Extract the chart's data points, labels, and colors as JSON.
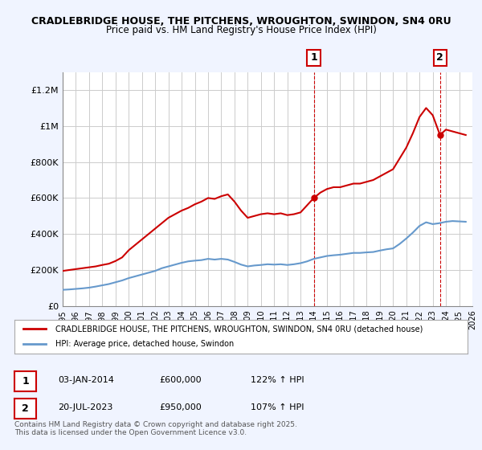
{
  "title": "CRADLEBRIDGE HOUSE, THE PITCHENS, WROUGHTON, SWINDON, SN4 0RU",
  "subtitle": "Price paid vs. HM Land Registry's House Price Index (HPI)",
  "bg_color": "#f0f4ff",
  "plot_bg_color": "#ffffff",
  "grid_color": "#cccccc",
  "red_color": "#cc0000",
  "blue_color": "#6699cc",
  "dashed_color": "#cc0000",
  "ylim": [
    0,
    1300000
  ],
  "yticks": [
    0,
    200000,
    400000,
    600000,
    800000,
    1000000,
    1200000
  ],
  "ytick_labels": [
    "£0",
    "£200K",
    "£400K",
    "£600K",
    "£800K",
    "£1M",
    "£1.2M"
  ],
  "xlim_start": 1995,
  "xlim_end": 2026,
  "xticks": [
    1995,
    1996,
    1997,
    1998,
    1999,
    2000,
    2001,
    2002,
    2003,
    2004,
    2005,
    2006,
    2007,
    2008,
    2009,
    2010,
    2011,
    2012,
    2013,
    2014,
    2015,
    2016,
    2017,
    2018,
    2019,
    2020,
    2021,
    2022,
    2023,
    2024,
    2025,
    2026
  ],
  "marker1_x": 2014.0,
  "marker1_y": 600000,
  "marker1_label": "1",
  "marker2_x": 2023.55,
  "marker2_y": 950000,
  "marker2_label": "2",
  "annotation1": [
    "1",
    "03-JAN-2014",
    "£600,000",
    "122% ↑ HPI"
  ],
  "annotation2": [
    "2",
    "20-JUL-2023",
    "£950,000",
    "107% ↑ HPI"
  ],
  "legend1": "CRADLEBRIDGE HOUSE, THE PITCHENS, WROUGHTON, SWINDON, SN4 0RU (detached house)",
  "legend2": "HPI: Average price, detached house, Swindon",
  "footnote": "Contains HM Land Registry data © Crown copyright and database right 2025.\nThis data is licensed under the Open Government Licence v3.0.",
  "red_x": [
    1995.0,
    1995.5,
    1996.0,
    1996.5,
    1997.0,
    1997.5,
    1998.0,
    1998.5,
    1999.0,
    1999.5,
    2000.0,
    2000.5,
    2001.0,
    2001.5,
    2002.0,
    2002.5,
    2003.0,
    2003.5,
    2004.0,
    2004.5,
    2005.0,
    2005.5,
    2006.0,
    2006.5,
    2007.0,
    2007.5,
    2008.0,
    2008.5,
    2009.0,
    2009.5,
    2010.0,
    2010.5,
    2011.0,
    2011.5,
    2012.0,
    2012.5,
    2013.0,
    2013.5,
    2014.0,
    2014.5,
    2015.0,
    2015.5,
    2016.0,
    2016.5,
    2017.0,
    2017.5,
    2018.0,
    2018.5,
    2019.0,
    2019.5,
    2020.0,
    2020.5,
    2021.0,
    2021.5,
    2022.0,
    2022.5,
    2023.0,
    2023.55,
    2024.0,
    2024.5,
    2025.0,
    2025.5
  ],
  "red_y": [
    195000,
    200000,
    205000,
    210000,
    215000,
    220000,
    228000,
    235000,
    250000,
    270000,
    310000,
    340000,
    370000,
    400000,
    430000,
    460000,
    490000,
    510000,
    530000,
    545000,
    565000,
    580000,
    600000,
    595000,
    610000,
    620000,
    580000,
    530000,
    490000,
    500000,
    510000,
    515000,
    510000,
    515000,
    505000,
    510000,
    520000,
    560000,
    600000,
    630000,
    650000,
    660000,
    660000,
    670000,
    680000,
    680000,
    690000,
    700000,
    720000,
    740000,
    760000,
    820000,
    880000,
    960000,
    1050000,
    1100000,
    1060000,
    950000,
    980000,
    970000,
    960000,
    950000
  ],
  "blue_x": [
    1995.0,
    1995.5,
    1996.0,
    1996.5,
    1997.0,
    1997.5,
    1998.0,
    1998.5,
    1999.0,
    1999.5,
    2000.0,
    2000.5,
    2001.0,
    2001.5,
    2002.0,
    2002.5,
    2003.0,
    2003.5,
    2004.0,
    2004.5,
    2005.0,
    2005.5,
    2006.0,
    2006.5,
    2007.0,
    2007.5,
    2008.0,
    2008.5,
    2009.0,
    2009.5,
    2010.0,
    2010.5,
    2011.0,
    2011.5,
    2012.0,
    2012.5,
    2013.0,
    2013.5,
    2014.0,
    2014.5,
    2015.0,
    2015.5,
    2016.0,
    2016.5,
    2017.0,
    2017.5,
    2018.0,
    2018.5,
    2019.0,
    2019.5,
    2020.0,
    2020.5,
    2021.0,
    2021.5,
    2022.0,
    2022.5,
    2023.0,
    2023.5,
    2024.0,
    2024.5,
    2025.0,
    2025.5
  ],
  "blue_y": [
    90000,
    92000,
    95000,
    98000,
    102000,
    108000,
    115000,
    122000,
    132000,
    142000,
    155000,
    165000,
    175000,
    185000,
    195000,
    210000,
    220000,
    230000,
    240000,
    248000,
    252000,
    255000,
    262000,
    258000,
    262000,
    258000,
    245000,
    230000,
    220000,
    225000,
    228000,
    232000,
    230000,
    232000,
    228000,
    232000,
    238000,
    248000,
    262000,
    270000,
    278000,
    282000,
    285000,
    290000,
    295000,
    295000,
    298000,
    300000,
    308000,
    315000,
    320000,
    345000,
    375000,
    408000,
    445000,
    465000,
    455000,
    460000,
    468000,
    472000,
    470000,
    468000
  ]
}
